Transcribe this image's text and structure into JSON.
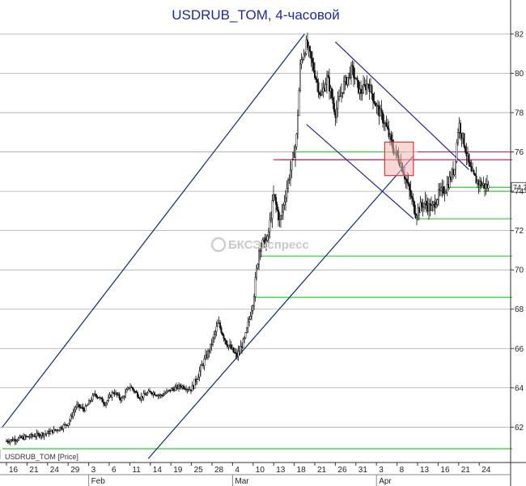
{
  "chart_data": {
    "type": "candlestick",
    "title": "USDRUB_TOM, 4-часовой",
    "series_label": "USDRUB_TOM [Price]",
    "last_price_label": "74.2",
    "watermark": "БКСЭкспресс",
    "ylim": [
      60.2,
      83.4
    ],
    "yticks": [
      62,
      64,
      66,
      68,
      70,
      72,
      74,
      76,
      78,
      80,
      82
    ],
    "grid": "horizontal",
    "axis_position": "right",
    "xtick_labels": [
      "16",
      "21",
      "24",
      "29",
      "3",
      "6",
      "11",
      "14",
      "19",
      "25",
      "28",
      "4",
      "10",
      "13",
      "18",
      "21",
      "26",
      "31",
      "3",
      "8",
      "13",
      "16",
      "21",
      "24"
    ],
    "month_labels": [
      {
        "label": "Feb",
        "at_tick": 4
      },
      {
        "label": "Mar",
        "at_tick": 11
      },
      {
        "label": "Apr",
        "at_tick": 18
      }
    ],
    "price_path": [
      [
        0,
        61.3
      ],
      [
        1,
        61.5
      ],
      [
        2,
        61.7
      ],
      [
        2.5,
        61.9
      ],
      [
        3,
        62.2
      ],
      [
        3.4,
        63.1
      ],
      [
        3.8,
        62.9
      ],
      [
        4.3,
        63.7
      ],
      [
        4.8,
        63.2
      ],
      [
        5.2,
        63.8
      ],
      [
        5.6,
        63.4
      ],
      [
        6,
        64.1
      ],
      [
        6.5,
        63.5
      ],
      [
        7,
        63.8
      ],
      [
        7.5,
        63.6
      ],
      [
        8,
        63.9
      ],
      [
        8.5,
        64.1
      ],
      [
        9,
        63.9
      ],
      [
        9.5,
        65.1
      ],
      [
        9.9,
        66.0
      ],
      [
        10.3,
        67.3
      ],
      [
        10.7,
        66.3
      ],
      [
        11.2,
        65.6
      ],
      [
        11.6,
        66.5
      ],
      [
        12.0,
        68.4
      ],
      [
        12.3,
        71.2
      ],
      [
        12.7,
        71.5
      ],
      [
        13.0,
        73.8
      ],
      [
        13.3,
        72.4
      ],
      [
        13.7,
        74.5
      ],
      [
        14.1,
        76.5
      ],
      [
        14.3,
        80.5
      ],
      [
        14.6,
        81.5
      ],
      [
        15.0,
        80.0
      ],
      [
        15.3,
        78.8
      ],
      [
        15.6,
        79.8
      ],
      [
        16.0,
        78.0
      ],
      [
        16.4,
        79.4
      ],
      [
        16.8,
        80.2
      ],
      [
        17.2,
        79.0
      ],
      [
        17.6,
        79.5
      ],
      [
        18.0,
        78.3
      ],
      [
        18.4,
        77.5
      ],
      [
        18.8,
        76.2
      ],
      [
        19.2,
        75.4
      ],
      [
        19.6,
        74.0
      ],
      [
        19.9,
        72.9
      ],
      [
        20.3,
        73.4
      ],
      [
        20.7,
        73.1
      ],
      [
        21.0,
        73.8
      ],
      [
        21.4,
        74.2
      ],
      [
        21.8,
        75.2
      ],
      [
        22.0,
        77.5
      ],
      [
        22.3,
        76.3
      ],
      [
        22.6,
        74.9
      ],
      [
        22.9,
        74.5
      ],
      [
        23.2,
        74.3
      ],
      [
        23.5,
        74.2
      ]
    ],
    "channel_lines": [
      {
        "color": "#0d2a6e",
        "from": [
          -0.2,
          62.0
        ],
        "to": [
          14.5,
          82.0
        ]
      },
      {
        "color": "#0d2a6e",
        "from": [
          6.9,
          60.4
        ],
        "to": [
          19.8,
          75.8
        ]
      },
      {
        "color": "#23248f",
        "from": [
          16.0,
          81.6
        ],
        "to": [
          22.5,
          75.1
        ]
      },
      {
        "color": "#23248f",
        "from": [
          14.6,
          77.4
        ],
        "to": [
          19.8,
          72.6
        ]
      }
    ],
    "support_levels": [
      {
        "color": "#33cc33",
        "y": 60.9,
        "from": -0.2,
        "to": 24.6
      },
      {
        "color": "#33cc33",
        "y": 68.6,
        "from": 12.0,
        "to": 24.6
      },
      {
        "color": "#33cc33",
        "y": 70.7,
        "from": 12.3,
        "to": 24.6
      },
      {
        "color": "#33cc33",
        "y": 72.6,
        "from": 19.9,
        "to": 24.6
      },
      {
        "color": "#33cc33",
        "y": 74.0,
        "from": 23.2,
        "to": 24.6
      },
      {
        "color": "#33cc33",
        "y": 74.2,
        "from": 21.5,
        "to": 24.6
      },
      {
        "color": "#33cc33",
        "y": 75.6,
        "from": 13.3,
        "to": 20.0
      },
      {
        "color": "#33cc33",
        "y": 76.0,
        "from": 14.1,
        "to": 19.4
      },
      {
        "color": "#cc2277",
        "y": 75.6,
        "from": 13.0,
        "to": 24.6
      },
      {
        "color": "#cc2277",
        "y": 76.0,
        "from": 20.0,
        "to": 24.6
      }
    ],
    "highlight_box": {
      "color": "#d23a3a",
      "x0": 18.4,
      "x1": 19.8,
      "y0": 74.8,
      "y1": 76.5
    }
  }
}
